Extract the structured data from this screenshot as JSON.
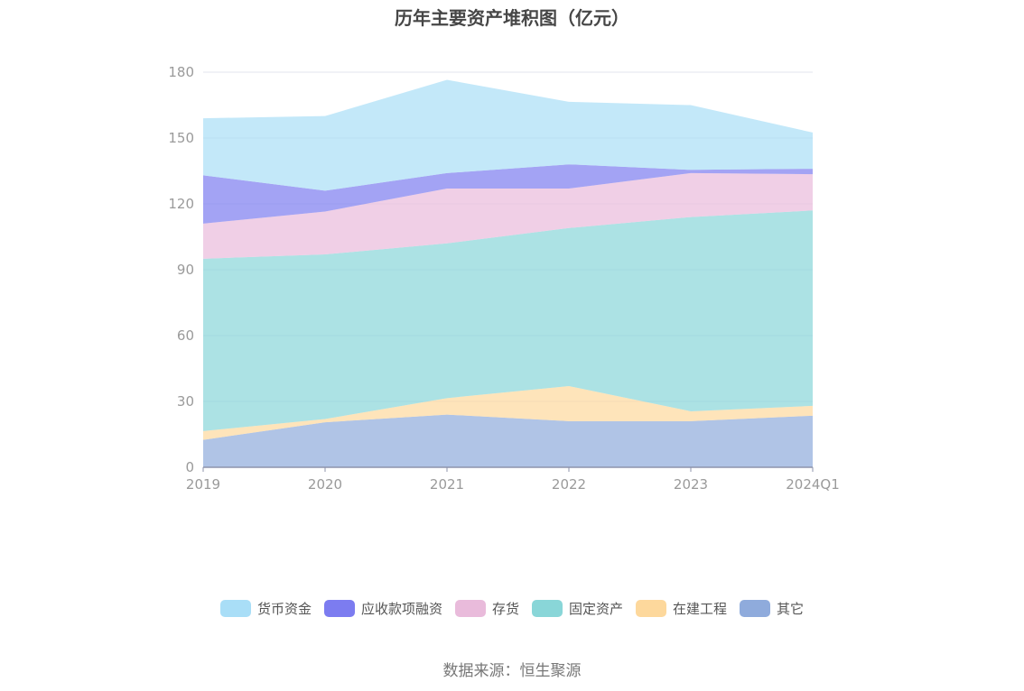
{
  "chart_data": {
    "type": "area",
    "stacked": true,
    "title": "历年主要资产堆积图（亿元）",
    "categories": [
      "2019",
      "2020",
      "2021",
      "2022",
      "2023",
      "2024Q1"
    ],
    "ylim": [
      0,
      180
    ],
    "yticks": [
      0,
      30,
      60,
      90,
      120,
      150,
      180
    ],
    "grid": true,
    "legend_position": "bottom",
    "series": [
      {
        "name": "其它",
        "color": "#8fabdc",
        "values": [
          12.5,
          20.5,
          24.0,
          21.0,
          21.0,
          23.5
        ]
      },
      {
        "name": "在建工程",
        "color": "#fdd89c",
        "values": [
          4.0,
          1.5,
          7.5,
          16.0,
          4.5,
          4.5
        ]
      },
      {
        "name": "固定资产",
        "color": "#89d6d8",
        "values": [
          78.5,
          75.0,
          70.5,
          72.0,
          88.5,
          89.0
        ]
      },
      {
        "name": "存货",
        "color": "#e9bbdb",
        "values": [
          16.0,
          19.5,
          25.0,
          18.0,
          20.0,
          16.5
        ]
      },
      {
        "name": "应收款项融资",
        "color": "#7c7cf0",
        "values": [
          22.0,
          9.5,
          7.0,
          11.0,
          1.5,
          2.5
        ]
      },
      {
        "name": "货币资金",
        "color": "#a9def7",
        "values": [
          26.0,
          34.0,
          42.5,
          28.5,
          29.5,
          16.5
        ]
      }
    ]
  },
  "legend": [
    {
      "label": "货币资金",
      "color": "#a9def7"
    },
    {
      "label": "应收款项融资",
      "color": "#7c7cf0"
    },
    {
      "label": "存货",
      "color": "#e9bbdb"
    },
    {
      "label": "固定资产",
      "color": "#89d6d8"
    },
    {
      "label": "在建工程",
      "color": "#fdd89c"
    },
    {
      "label": "其它",
      "color": "#8fabdc"
    }
  ],
  "source": "数据来源：恒生聚源"
}
